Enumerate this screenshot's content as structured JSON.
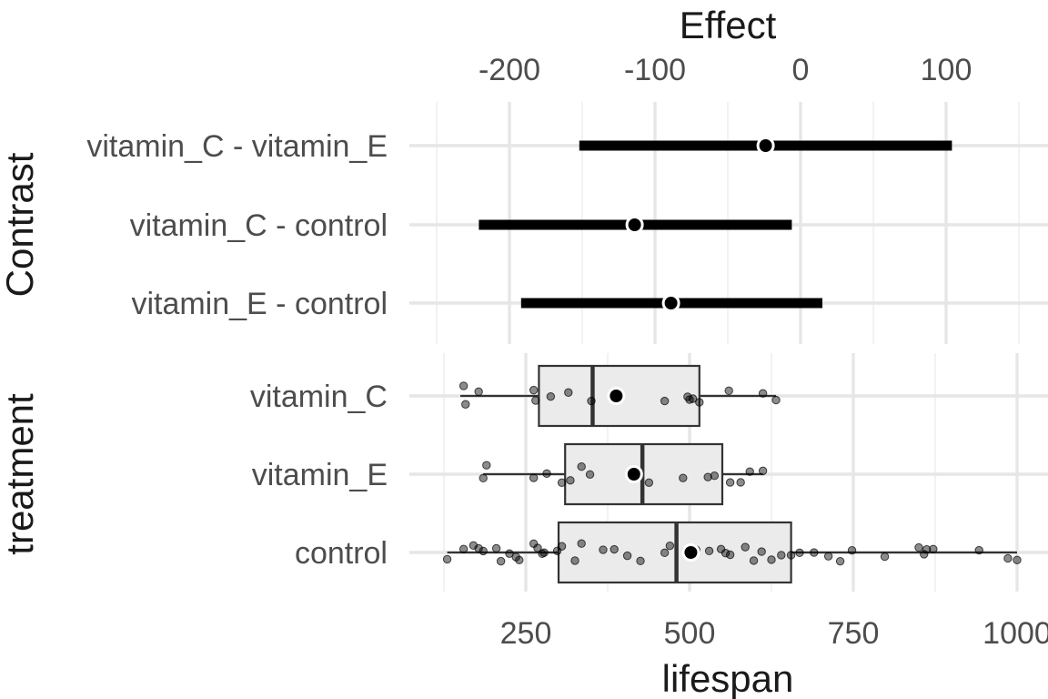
{
  "chart_data": [
    {
      "type": "interval",
      "panel": "effects",
      "xlabel": "Effect",
      "ylabel": "Contrast",
      "xlim": [
        -250,
        160
      ],
      "x_ticks": [
        -200,
        -100,
        0,
        100
      ],
      "x_tick_labels": [
        "-200",
        "-100",
        "0",
        "100"
      ],
      "categories": [
        "vitamin_C - vitamin_E",
        "vitamin_C - control",
        "vitamin_E - control"
      ],
      "estimates": [
        -24,
        -114,
        -89
      ],
      "lower": [
        -152,
        -221,
        -192
      ],
      "upper": [
        104,
        -6,
        15
      ],
      "grid": true
    },
    {
      "type": "boxplot",
      "panel": "lifespan",
      "xlabel": "lifespan",
      "ylabel": "treatment",
      "xlim": [
        120,
        1010
      ],
      "x_ticks": [
        250,
        500,
        750,
        1000
      ],
      "x_tick_labels": [
        "250",
        "500",
        "750",
        "1000"
      ],
      "categories": [
        "vitamin_C",
        "vitamin_E",
        "control"
      ],
      "boxes": [
        {
          "group": "vitamin_C",
          "whisker_low": 150,
          "q1": 270,
          "median": 352,
          "q3": 515,
          "whisker_high": 632,
          "mean": 388
        },
        {
          "group": "vitamin_E",
          "whisker_low": 185,
          "q1": 310,
          "median": 428,
          "q3": 550,
          "whisker_high": 612,
          "mean": 415
        },
        {
          "group": "control",
          "whisker_low": 130,
          "q1": 300,
          "median": 480,
          "q3": 655,
          "whisker_high": 1000,
          "mean": 502
        }
      ],
      "points": [
        {
          "group": "vitamin_C",
          "values": [
            155,
            158,
            178,
            262,
            265,
            288,
            315,
            350,
            462,
            497,
            500,
            505,
            515,
            560,
            612,
            632
          ]
        },
        {
          "group": "vitamin_E",
          "values": [
            185,
            190,
            262,
            282,
            305,
            318,
            335,
            348,
            438,
            490,
            528,
            538,
            562,
            578,
            592,
            612
          ]
        },
        {
          "group": "control",
          "values": [
            130,
            155,
            170,
            178,
            185,
            205,
            212,
            225,
            235,
            240,
            262,
            268,
            275,
            278,
            298,
            305,
            325,
            335,
            368,
            385,
            405,
            425,
            462,
            470,
            495,
            505,
            510,
            530,
            548,
            555,
            562,
            585,
            598,
            610,
            625,
            640,
            655,
            668,
            690,
            712,
            730,
            748,
            798,
            850,
            858,
            862,
            872,
            942,
            986,
            1000
          ]
        }
      ],
      "grid": true
    }
  ]
}
